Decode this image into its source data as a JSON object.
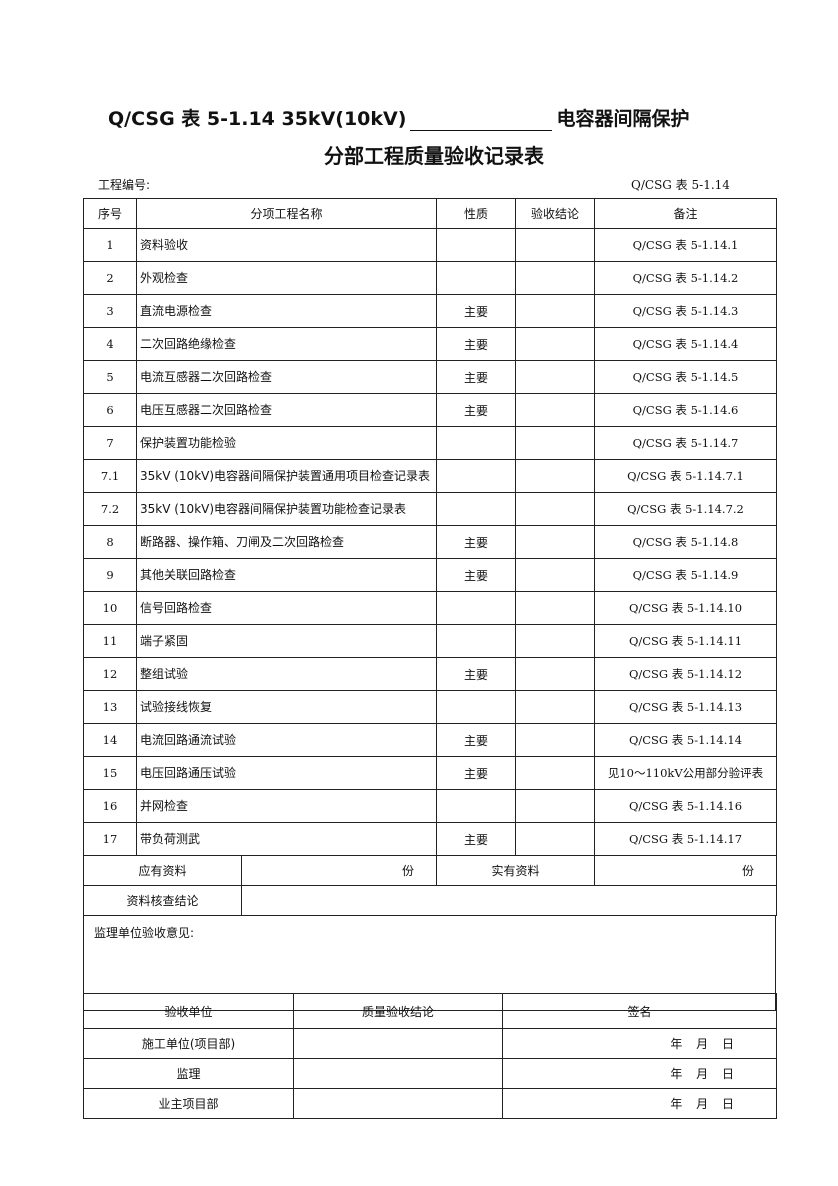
{
  "title": {
    "line1_left": "Q/CSG 表 5-1.14 35kV(10kV)",
    "line1_right": "电容器间隔保护",
    "line2": "分部工程质量验收记录表"
  },
  "meta": {
    "project_no_label": "工程编号:",
    "form_code": "Q/CSG 表 5-1.14"
  },
  "table": {
    "headers": [
      "序号",
      "分项工程名称",
      "性质",
      "验收结论",
      "备注"
    ],
    "rows": [
      {
        "no": "1",
        "name": "资料验收",
        "nature": "",
        "conclusion": "",
        "note": "Q/CSG 表 5-1.14.1"
      },
      {
        "no": "2",
        "name": "外观检查",
        "nature": "",
        "conclusion": "",
        "note": "Q/CSG 表 5-1.14.2"
      },
      {
        "no": "3",
        "name": "直流电源检查",
        "nature": "主要",
        "conclusion": "",
        "note": "Q/CSG 表 5-1.14.3"
      },
      {
        "no": "4",
        "name": "二次回路绝缘检查",
        "nature": "主要",
        "conclusion": "",
        "note": "Q/CSG 表 5-1.14.4"
      },
      {
        "no": "5",
        "name": "电流互感器二次回路检查",
        "nature": "主要",
        "conclusion": "",
        "note": "Q/CSG 表 5-1.14.5"
      },
      {
        "no": "6",
        "name": "电压互感器二次回路检查",
        "nature": "主要",
        "conclusion": "",
        "note": "Q/CSG 表 5-1.14.6"
      },
      {
        "no": "7",
        "name": "保护装置功能检验",
        "nature": "",
        "conclusion": "",
        "note": "Q/CSG 表 5-1.14.7"
      },
      {
        "no": "7.1",
        "name": "35kV (10kV)电容器间隔保护装置通用项目检查记录表",
        "nature": "",
        "conclusion": "",
        "note": "Q/CSG 表 5-1.14.7.1"
      },
      {
        "no": "7.2",
        "name": "35kV (10kV)电容器间隔保护装置功能检查记录表",
        "nature": "",
        "conclusion": "",
        "note": "Q/CSG 表 5-1.14.7.2"
      },
      {
        "no": "8",
        "name": "断路器、操作箱、刀闸及二次回路检查",
        "nature": "主要",
        "conclusion": "",
        "note": "Q/CSG 表 5-1.14.8"
      },
      {
        "no": "9",
        "name": "其他关联回路检查",
        "nature": "主要",
        "conclusion": "",
        "note": "Q/CSG 表 5-1.14.9"
      },
      {
        "no": "10",
        "name": "信号回路检查",
        "nature": "",
        "conclusion": "",
        "note": "Q/CSG 表 5-1.14.10"
      },
      {
        "no": "11",
        "name": "端子紧固",
        "nature": "",
        "conclusion": "",
        "note": "Q/CSG 表 5-1.14.11"
      },
      {
        "no": "12",
        "name": "整组试验",
        "nature": "主要",
        "conclusion": "",
        "note": "Q/CSG 表 5-1.14.12"
      },
      {
        "no": "13",
        "name": "试验接线恢复",
        "nature": "",
        "conclusion": "",
        "note": "Q/CSG 表 5-1.14.13"
      },
      {
        "no": "14",
        "name": "电流回路通流试验",
        "nature": "主要",
        "conclusion": "",
        "note": "Q/CSG 表 5-1.14.14"
      },
      {
        "no": "15",
        "name": "电压回路通压试验",
        "nature": "主要",
        "conclusion": "",
        "note": "见10～110kV公用部分验评表"
      },
      {
        "no": "16",
        "name": "并网检查",
        "nature": "",
        "conclusion": "",
        "note": "Q/CSG 表 5-1.14.16"
      },
      {
        "no": "17",
        "name": "带负荷测武",
        "nature": "主要",
        "conclusion": "",
        "note": "Q/CSG 表 5-1.14.17"
      }
    ]
  },
  "summary": {
    "required_label": "应有资料",
    "required_unit": "份",
    "actual_label": "实有资料",
    "actual_unit": "份",
    "check_label": "资料核查结论"
  },
  "supervision_opinion_label": "监理单位验收意见:",
  "sign": {
    "headers": [
      "验收单位",
      "质量验收结论",
      "签名"
    ],
    "rows": [
      {
        "unit": "施工单位(项目部)",
        "date": "年 月 日"
      },
      {
        "unit": "监理",
        "date": "年 月 日"
      },
      {
        "unit": "业主项目部",
        "date": "年 月 日"
      }
    ]
  }
}
